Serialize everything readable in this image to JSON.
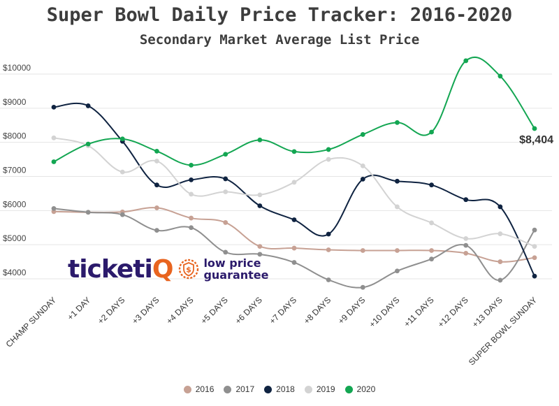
{
  "header": {
    "title": "Super Bowl Daily Price Tracker: 2016-2020",
    "subtitle": "Secondary Market Average List Price"
  },
  "logo": {
    "brand_main": "ticketi",
    "brand_accent": "Q",
    "tagline_line1": "low price",
    "tagline_line2": "guarantee",
    "seal_symbol": "$",
    "seal_icon": "shield-dollar-icon"
  },
  "colors": {
    "2016": "#c7a194",
    "2017": "#8f8f8f",
    "2018": "#0f2341",
    "2019": "#d3d3d3",
    "2020": "#13a652",
    "grid": "#e5e5e5",
    "brand": "#2b1a6b",
    "brand_accent": "#e8641f"
  },
  "chart_data": {
    "type": "line",
    "title": "Super Bowl Daily Price Tracker: 2016-2020",
    "subtitle": "Secondary Market Average List Price",
    "xlabel": "",
    "ylabel": "",
    "ylim": [
      3500,
      10500
    ],
    "yticks": [
      4000,
      5000,
      6000,
      7000,
      8000,
      9000,
      10000
    ],
    "ytick_labels": [
      "$4000",
      "$5000",
      "$6000",
      "$7000",
      "$8000",
      "$9000",
      "$10000"
    ],
    "grid": true,
    "legend_position": "bottom",
    "categories": [
      "CHAMP SUNDAY",
      "+1 DAY",
      "+2 DAYS",
      "+3 DAYS",
      "+4 DAYS",
      "+5 DAYS",
      "+6 DAYS",
      "+7 DAYS",
      "+8 DAYS",
      "+9 DAYS",
      "+10 DAYS",
      "+11 DAYS",
      "+12 DAYS",
      "+13 DAYS",
      "SUPER BOWL SUNDAY"
    ],
    "series": [
      {
        "name": "2016",
        "values": [
          5970,
          5950,
          5960,
          6080,
          5780,
          5650,
          4950,
          4900,
          4850,
          4830,
          4830,
          4830,
          4750,
          4500,
          4620
        ]
      },
      {
        "name": "2017",
        "values": [
          6060,
          5950,
          5880,
          5420,
          5500,
          4780,
          4720,
          4480,
          3970,
          3750,
          4230,
          4580,
          4980,
          3960,
          5430
        ]
      },
      {
        "name": "2018",
        "values": [
          9030,
          9070,
          8030,
          6750,
          6900,
          6930,
          6140,
          5730,
          5310,
          6920,
          6860,
          6750,
          6320,
          6110,
          4080
        ]
      },
      {
        "name": "2019",
        "values": [
          8130,
          7900,
          7130,
          7450,
          6480,
          6550,
          6460,
          6830,
          7500,
          7310,
          6110,
          5640,
          5180,
          5320,
          4950
        ]
      },
      {
        "name": "2020",
        "values": [
          7430,
          7950,
          8100,
          7740,
          7330,
          7650,
          8070,
          7730,
          7790,
          8230,
          8580,
          8300,
          10390,
          9940,
          8404
        ]
      }
    ],
    "annotations": [
      {
        "series": "2020",
        "category": "SUPER BOWL SUNDAY",
        "text": "$8,404"
      }
    ]
  }
}
